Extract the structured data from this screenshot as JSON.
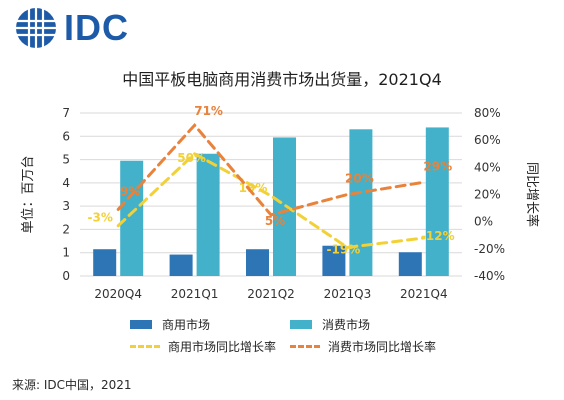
{
  "brand": {
    "logo_text": "IDC",
    "logo_color": "#1d5ba8"
  },
  "footer": {
    "source": "来源: IDC中国，2021"
  },
  "chart_data": {
    "type": "bar",
    "title": "中国平板电脑商用消费市场出货量，2021Q4",
    "ylabel": "单位：百万台",
    "y2label": "同比增长率",
    "categories": [
      "2020Q4",
      "2021Q1",
      "2021Q2",
      "2021Q3",
      "2021Q4"
    ],
    "ylim": [
      0,
      7
    ],
    "yticks": [
      "0",
      "1",
      "2",
      "3",
      "4",
      "5",
      "6",
      "7"
    ],
    "y2lim": [
      -40,
      80
    ],
    "y2ticks": [
      "-40%",
      "-20%",
      "0%",
      "20%",
      "40%",
      "60%",
      "80%"
    ],
    "grid": true,
    "legend_position": "bottom",
    "series": [
      {
        "name": "商用市场",
        "kind": "bar",
        "axis": "left",
        "color": "#2e75b6",
        "values": [
          1.15,
          0.92,
          1.15,
          1.3,
          1.02
        ]
      },
      {
        "name": "消费市场",
        "kind": "bar",
        "axis": "left",
        "color": "#43b1c9",
        "values": [
          4.95,
          5.25,
          5.95,
          6.3,
          6.38
        ]
      },
      {
        "name": "商用市场同比增长率",
        "kind": "line",
        "axis": "right",
        "color": "#f2d137",
        "values": [
          -3,
          50,
          19,
          -19,
          -12
        ],
        "labels": [
          "-3%",
          "50%",
          "19%",
          "-19%",
          "-12%"
        ]
      },
      {
        "name": "消费市场同比增长率",
        "kind": "line",
        "axis": "right",
        "color": "#e9823a",
        "values": [
          9,
          71,
          5,
          20,
          29
        ],
        "labels": [
          "9%",
          "71%",
          "5%",
          "20%",
          "29%"
        ]
      }
    ]
  }
}
